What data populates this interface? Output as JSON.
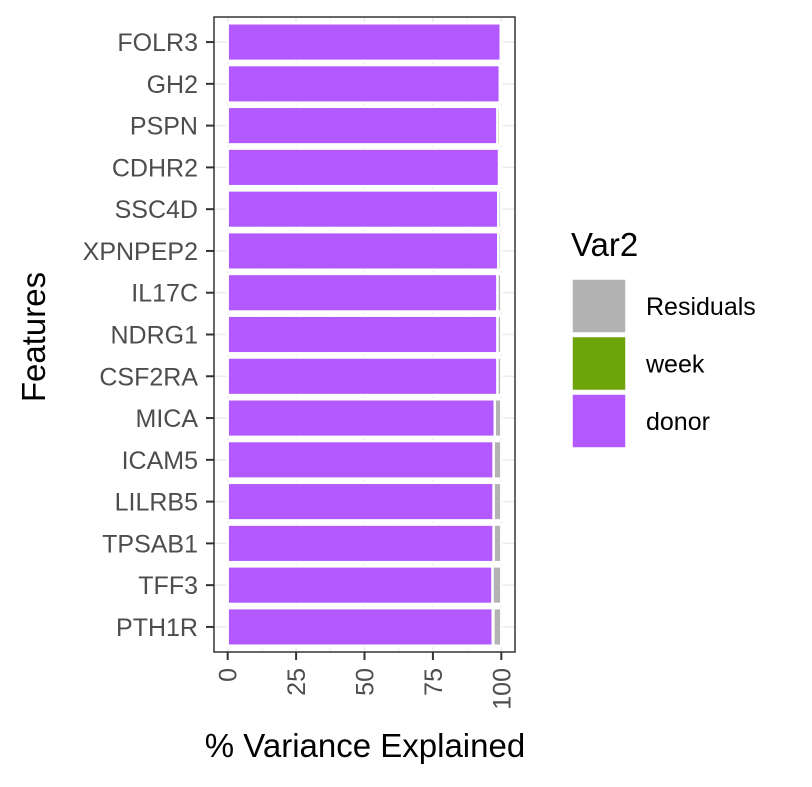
{
  "chart_data": {
    "type": "bar",
    "orientation": "horizontal",
    "stacked": true,
    "categories": [
      "FOLR3",
      "GH2",
      "PSPN",
      "CDHR2",
      "SSC4D",
      "XPNPEP2",
      "IL17C",
      "NDRG1",
      "CSF2RA",
      "MICA",
      "ICAM5",
      "LILRB5",
      "TPSAB1",
      "TFF3",
      "PTH1R"
    ],
    "series": [
      {
        "name": "donor",
        "color": "#B25AFF",
        "values": [
          99.8,
          99.5,
          98.6,
          99.2,
          98.9,
          98.9,
          98.6,
          98.6,
          98.6,
          97.6,
          97.2,
          97.2,
          97.2,
          96.8,
          96.9
        ]
      },
      {
        "name": "week",
        "color": "#6CA40A",
        "values": [
          0.0,
          0.0,
          1.0,
          0.0,
          0.0,
          0.0,
          0.0,
          0.0,
          0.0,
          0.0,
          0.0,
          0.0,
          0.0,
          0.0,
          0.2
        ]
      },
      {
        "name": "Residuals",
        "color": "#B3B3B3",
        "values": [
          0.2,
          0.5,
          0.4,
          0.8,
          1.1,
          1.1,
          1.4,
          1.4,
          1.4,
          2.4,
          2.8,
          2.8,
          2.8,
          3.2,
          2.9
        ]
      }
    ],
    "xlabel": "% Variance Explained",
    "ylabel": "Features",
    "xlim": [
      -5,
      105
    ],
    "xticks": [
      0,
      25,
      50,
      75,
      100
    ],
    "xtick_labels": [
      "0",
      "25",
      "50",
      "75",
      "100"
    ],
    "grid": true,
    "legend": {
      "title": "Var2",
      "position": "right",
      "entries": [
        {
          "label": "Residuals",
          "color": "#B3B3B3"
        },
        {
          "label": "week",
          "color": "#6CA40A"
        },
        {
          "label": "donor",
          "color": "#B25AFF"
        }
      ]
    }
  }
}
